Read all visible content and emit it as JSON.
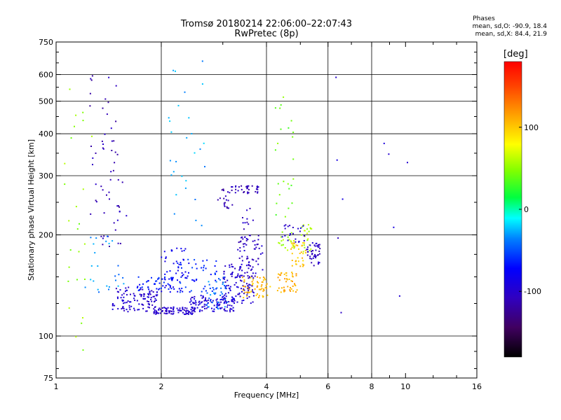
{
  "header": {
    "title": "Tromsø 20180214 22:06:00–22:07:43",
    "subtitle": "RwPretec (8p)"
  },
  "phases": {
    "heading": "Phases",
    "o_line": "mean, sd,O: -90.9, 18.4",
    "x_line": "mean, sd,X:  84.4, 21.9"
  },
  "chart_data": {
    "type": "scatter",
    "xlabel": "Frequency [MHz]",
    "ylabel": "Stationary phase Virtual Height [km]",
    "x_scale": "log",
    "y_scale": "log",
    "xlim": [
      1,
      16
    ],
    "ylim": [
      75,
      750
    ],
    "x_ticks": [
      1,
      2,
      4,
      6,
      8,
      10,
      16
    ],
    "y_ticks": [
      75,
      100,
      200,
      300,
      400,
      500,
      600,
      750
    ],
    "grid_x": [
      2,
      4,
      6,
      8
    ],
    "grid_y": [
      100,
      200,
      300,
      400,
      500,
      600
    ],
    "colorbar": {
      "unit": "deg",
      "ticks": [
        -100,
        0,
        100
      ],
      "range": [
        -180,
        180
      ]
    },
    "series": [
      {
        "clusters": [
          {
            "f": [
              1.45,
              1.95
            ],
            "h": [
              118,
              140
            ],
            "n": 110,
            "phase": -100
          },
          {
            "f": [
              1.9,
              2.5
            ],
            "h": [
              116,
              122
            ],
            "n": 90,
            "phase": -100
          },
          {
            "f": [
              2.4,
              3.3
            ],
            "h": [
              118,
              132
            ],
            "n": 110,
            "phase": -95
          },
          {
            "f": [
              3.0,
              3.7
            ],
            "h": [
              125,
              165
            ],
            "n": 110,
            "phase": -100
          },
          {
            "f": [
              3.3,
              3.9
            ],
            "h": [
              150,
              200
            ],
            "n": 60,
            "phase": -105
          },
          {
            "f": [
              2.0,
              2.4
            ],
            "h": [
              135,
              185
            ],
            "n": 55,
            "phase": -80
          },
          {
            "f": [
              2.2,
              2.9
            ],
            "h": [
              135,
              170
            ],
            "n": 45,
            "phase": -60
          },
          {
            "f": [
              1.7,
              2.2
            ],
            "h": [
              135,
              150
            ],
            "n": 40,
            "phase": -65
          },
          {
            "f": [
              2.7,
              3.1
            ],
            "h": [
              120,
              150
            ],
            "n": 35,
            "phase": -40
          },
          {
            "f": [
              3.4,
              4.1
            ],
            "h": [
              130,
              150
            ],
            "n": 55,
            "phase": 105
          },
          {
            "f": [
              4.3,
              4.9
            ],
            "h": [
              135,
              155
            ],
            "n": 45,
            "phase": 110
          },
          {
            "f": [
              4.7,
              5.2
            ],
            "h": [
              160,
              190
            ],
            "n": 35,
            "phase": 100
          },
          {
            "f": [
              4.3,
              4.8
            ],
            "h": [
              180,
              205
            ],
            "n": 22,
            "phase": 55
          },
          {
            "f": [
              5.0,
              5.4
            ],
            "h": [
              175,
              215
            ],
            "n": 22,
            "phase": 60
          },
          {
            "f": [
              5.2,
              5.7
            ],
            "h": [
              160,
              190
            ],
            "n": 45,
            "phase": -105
          },
          {
            "f": [
              4.4,
              5.2
            ],
            "h": [
              190,
              215
            ],
            "n": 22,
            "phase": -100
          },
          {
            "f": [
              3.1,
              3.8
            ],
            "h": [
              265,
              280
            ],
            "n": 35,
            "phase": -110
          },
          {
            "f": [
              2.9,
              3.2
            ],
            "h": [
              240,
              275
            ],
            "n": 18,
            "phase": -110
          },
          {
            "f": [
              3.4,
              3.7
            ],
            "h": [
              190,
              240
            ],
            "n": 12,
            "phase": -105
          },
          {
            "f": [
              1.25,
              1.6
            ],
            "h": [
              180,
              300
            ],
            "n": 30,
            "phase": -110
          },
          {
            "f": [
              1.25,
              1.5
            ],
            "h": [
              300,
              620
            ],
            "n": 30,
            "phase": -110
          },
          {
            "f": [
              1.2,
              1.6
            ],
            "h": [
              130,
              200
            ],
            "n": 25,
            "phase": -35
          },
          {
            "f": [
              1.05,
              1.3
            ],
            "h": [
              90,
              580
            ],
            "n": 26,
            "phase": 50
          },
          {
            "f": [
              2.1,
              2.7
            ],
            "h": [
              200,
              660
            ],
            "n": 28,
            "phase": -30
          },
          {
            "f": [
              4.2,
              4.8
            ],
            "h": [
              220,
              560
            ],
            "n": 24,
            "phase": 40
          },
          {
            "f": [
              6.0,
              10.5
            ],
            "h": [
              80,
              620
            ],
            "n": 10,
            "phase": -100
          }
        ]
      }
    ]
  }
}
